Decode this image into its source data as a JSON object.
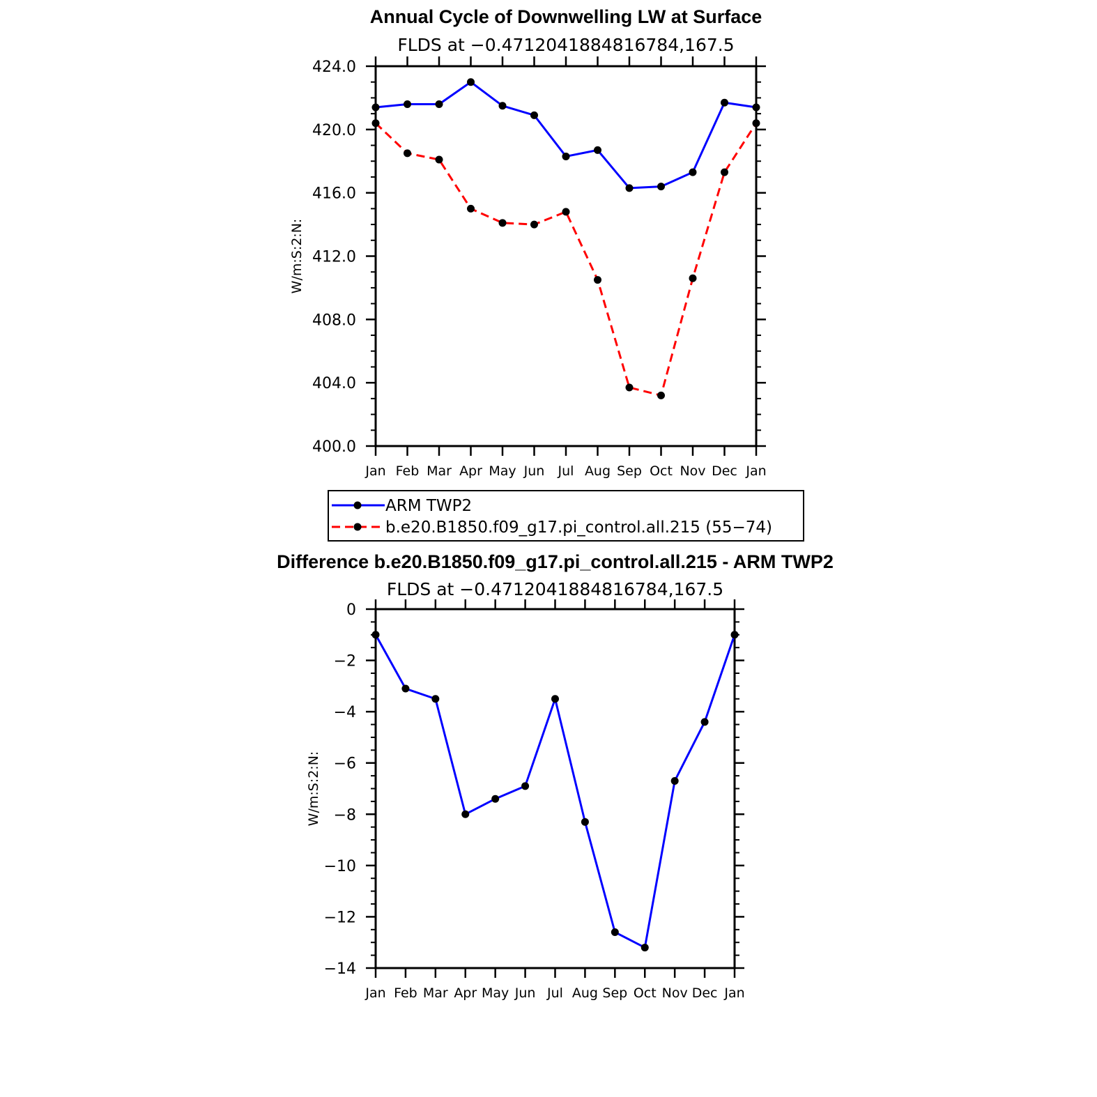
{
  "chart_data": [
    {
      "type": "line",
      "title": "Annual Cycle of Downwelling LW at Surface",
      "subtitle": "FLDS at −0.4712041884816784,167.5",
      "xlabel": "",
      "ylabel": "W/m:S:2:N:",
      "categories": [
        "Jan",
        "Feb",
        "Mar",
        "Apr",
        "May",
        "Jun",
        "Jul",
        "Aug",
        "Sep",
        "Oct",
        "Nov",
        "Dec",
        "Jan"
      ],
      "ylim": [
        400,
        424
      ],
      "yticks": [
        "424.0",
        "420.0",
        "416.0",
        "412.0",
        "408.0",
        "404.0",
        "400.0"
      ],
      "ytick_values": [
        424,
        420,
        416,
        412,
        408,
        404,
        400
      ],
      "series": [
        {
          "name": "ARM TWP2",
          "color": "#0000ff",
          "dashed": false,
          "values": [
            421.4,
            421.6,
            421.6,
            423.0,
            421.5,
            420.9,
            418.3,
            418.7,
            416.3,
            416.4,
            417.3,
            421.7,
            421.4
          ]
        },
        {
          "name": "b.e20.B1850.f09_g17.pi_control.all.215 (55−74)",
          "color": "#ff0000",
          "dashed": true,
          "values": [
            420.4,
            418.5,
            418.1,
            415.0,
            414.1,
            414.0,
            414.8,
            410.5,
            403.7,
            403.2,
            410.6,
            417.3,
            420.4
          ]
        }
      ],
      "legend": "bottom"
    },
    {
      "type": "line",
      "title": "Difference b.e20.B1850.f09_g17.pi_control.all.215 - ARM TWP2",
      "subtitle": "FLDS at −0.4712041884816784,167.5",
      "xlabel": "",
      "ylabel": "W/m:S:2:N:",
      "categories": [
        "Jan",
        "Feb",
        "Mar",
        "Apr",
        "May",
        "Jun",
        "Jul",
        "Aug",
        "Sep",
        "Oct",
        "Nov",
        "Dec",
        "Jan"
      ],
      "ylim": [
        -14,
        0
      ],
      "yticks": [
        "0",
        "−2",
        "−4",
        "−6",
        "−8",
        "−10",
        "−12",
        "−14"
      ],
      "ytick_values": [
        0,
        -2,
        -4,
        -6,
        -8,
        -10,
        -12,
        -14
      ],
      "series": [
        {
          "name": "Difference",
          "color": "#0000ff",
          "dashed": false,
          "values": [
            -1.0,
            -3.1,
            -3.5,
            -8.0,
            -7.4,
            -6.9,
            -3.5,
            -8.3,
            -12.6,
            -13.2,
            -6.7,
            -4.4,
            -1.0
          ]
        }
      ]
    }
  ]
}
